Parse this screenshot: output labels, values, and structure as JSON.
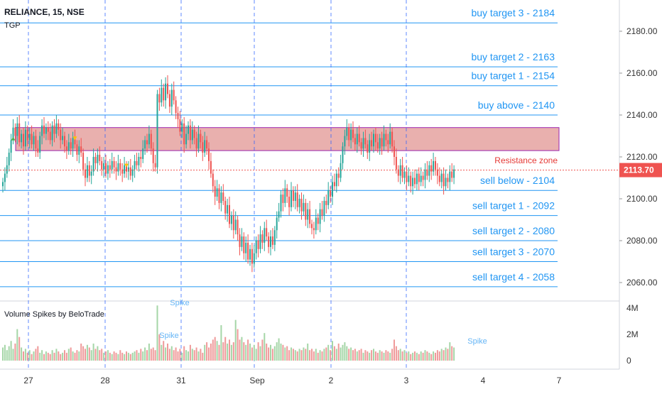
{
  "header": {
    "symbol": "RELIANCE, 15, NSE",
    "indicator": "TGP",
    "volume_pane_title": "Volume Spikes by BeloTrade"
  },
  "colors": {
    "up": "#26a69a",
    "down": "#ef5350",
    "level_line": "#2196f3",
    "level_text": "#2196f3",
    "zone_fill": "#e5a2a0",
    "zone_border": "#9c27b0",
    "zone_label": "#e53935",
    "price_line": "#ef5350",
    "price_badge": "#ef5350",
    "session_line": "#2962ff",
    "vol_up": "#a5d6a7",
    "vol_down": "#ef9a9a",
    "spike_text": "#64b5f6",
    "marker_up": "#4caf50",
    "marker_down": "#ffc107",
    "axis_text": "#333333"
  },
  "chart_data": {
    "type": "candlestick",
    "y_range": [
      2054,
      2190
    ],
    "y_ticks": [
      "2060.00",
      "2080.00",
      "2100.00",
      "2120.00",
      "2140.00",
      "2160.00",
      "2180.00"
    ],
    "x_ticks": [
      "27",
      "28",
      "31",
      "Sep",
      "2",
      "3",
      "4",
      "7"
    ],
    "session_breaks": [
      "27",
      "28",
      "31",
      "Sep",
      "2",
      "3"
    ],
    "last_price": "2113.70",
    "levels": [
      {
        "label": "buy target 3 - 2184",
        "value": 2184
      },
      {
        "label": "buy target 2 - 2163",
        "value": 2163
      },
      {
        "label": "buy target 1 - 2154",
        "value": 2154
      },
      {
        "label": "buy above - 2140",
        "value": 2140
      },
      {
        "label": "sell below - 2104",
        "value": 2104
      },
      {
        "label": "sell target 1 - 2092",
        "value": 2092
      },
      {
        "label": "sell target 2 - 2080",
        "value": 2080
      },
      {
        "label": "sell target 3 - 2070",
        "value": 2070
      },
      {
        "label": "sell target 4 - 2058",
        "value": 2058
      }
    ],
    "zone": {
      "label": "Resistance zone",
      "low": 2123,
      "high": 2134
    },
    "volume_ticks": [
      "4M",
      "2M",
      "0"
    ],
    "volume_range": [
      0,
      4
    ],
    "spike_labels": [
      "Spike",
      "Spike",
      "Spike"
    ],
    "close_series": [
      2108,
      2112,
      2116,
      2122,
      2128,
      2134,
      2130,
      2136,
      2127,
      2131,
      2125,
      2133,
      2128,
      2131,
      2126,
      2130,
      2124,
      2122,
      2130,
      2135,
      2131,
      2134,
      2132,
      2128,
      2135,
      2131,
      2136,
      2133,
      2128,
      2130,
      2125,
      2123,
      2127,
      2124,
      2129,
      2126,
      2121,
      2125,
      2122,
      2114,
      2110,
      2116,
      2111,
      2113,
      2120,
      2117,
      2121,
      2118,
      2114,
      2117,
      2112,
      2116,
      2114,
      2118,
      2115,
      2113,
      2117,
      2114,
      2112,
      2116,
      2113,
      2115,
      2111,
      2114,
      2118,
      2116,
      2120,
      2119,
      2124,
      2128,
      2126,
      2131,
      2124,
      2117,
      2115,
      2150,
      2146,
      2153,
      2147,
      2155,
      2150,
      2144,
      2152,
      2147,
      2141,
      2138,
      2132,
      2136,
      2126,
      2131,
      2135,
      2128,
      2133,
      2129,
      2124,
      2131,
      2127,
      2122,
      2128,
      2124,
      2118,
      2112,
      2106,
      2101,
      2105,
      2098,
      2103,
      2099,
      2093,
      2097,
      2088,
      2092,
      2085,
      2090,
      2083,
      2077,
      2082,
      2074,
      2079,
      2071,
      2076,
      2069,
      2074,
      2080,
      2076,
      2083,
      2079,
      2086,
      2082,
      2077,
      2082,
      2078,
      2085,
      2091,
      2094,
      2102,
      2098,
      2105,
      2101,
      2096,
      2104,
      2099,
      2103,
      2096,
      2100,
      2094,
      2098,
      2090,
      2095,
      2088,
      2086,
      2085,
      2091,
      2088,
      2095,
      2092,
      2099,
      2097,
      2104,
      2101,
      2108,
      2106,
      2112,
      2110,
      2117,
      2125,
      2130,
      2134,
      2128,
      2133,
      2129,
      2126,
      2131,
      2127,
      2124,
      2129,
      2126,
      2122,
      2128,
      2125,
      2131,
      2127,
      2124,
      2129,
      2125,
      2131,
      2128,
      2126,
      2132,
      2125,
      2120,
      2114,
      2111,
      2116,
      2110,
      2113,
      2108,
      2111,
      2106,
      2110,
      2107,
      2112,
      2108,
      2111,
      2109,
      2114,
      2111,
      2116,
      2113,
      2118,
      2114,
      2111,
      2108,
      2112,
      2106,
      2110,
      2108,
      2113,
      2110,
      2114
    ],
    "volume_series": [
      1.0,
      1.2,
      0.8,
      1.1,
      1.5,
      0.9,
      1.3,
      2.4,
      1.8,
      1.0,
      0.7,
      0.9,
      0.6,
      0.8,
      0.5,
      0.7,
      0.9,
      1.1,
      0.6,
      0.8,
      0.5,
      0.7,
      0.6,
      0.5,
      0.8,
      0.6,
      0.9,
      0.7,
      0.5,
      0.6,
      0.8,
      0.6,
      0.9,
      1.0,
      0.7,
      0.6,
      0.8,
      0.7,
      1.3,
      1.1,
      0.9,
      1.2,
      1.0,
      0.8,
      1.3,
      0.9,
      1.1,
      0.8,
      0.9,
      0.6,
      0.7,
      0.8,
      0.6,
      0.5,
      0.7,
      0.6,
      0.5,
      0.8,
      0.6,
      0.5,
      0.7,
      0.6,
      0.5,
      0.6,
      0.7,
      0.8,
      0.6,
      0.9,
      0.7,
      1.0,
      0.8,
      1.3,
      0.9,
      1.0,
      0.8,
      4.2,
      2.0,
      1.2,
      1.5,
      1.0,
      1.3,
      0.9,
      1.1,
      0.8,
      1.0,
      0.7,
      0.9,
      0.6,
      1.1,
      0.8,
      0.7,
      1.2,
      0.9,
      0.8,
      1.0,
      0.7,
      0.9,
      0.6,
      1.2,
      1.4,
      1.0,
      1.3,
      1.6,
      1.8,
      1.5,
      1.2,
      2.7,
      1.4,
      1.8,
      1.3,
      1.6,
      1.2,
      1.4,
      3.1,
      2.4,
      1.6,
      1.8,
      1.4,
      1.2,
      1.6,
      1.3,
      1.0,
      1.2,
      0.9,
      1.4,
      1.1,
      1.6,
      2.1,
      1.3,
      1.0,
      1.2,
      0.9,
      1.1,
      1.4,
      1.7,
      1.3,
      1.2,
      1.0,
      1.1,
      0.8,
      1.0,
      0.9,
      0.8,
      0.7,
      0.9,
      0.8,
      1.0,
      0.9,
      1.3,
      0.8,
      0.9,
      0.7,
      0.9,
      0.6,
      0.8,
      0.7,
      0.9,
      1.0,
      1.2,
      0.8,
      1.5,
      1.1,
      0.9,
      1.3,
      1.0,
      1.2,
      1.4,
      1.1,
      0.9,
      1.0,
      0.8,
      0.9,
      0.7,
      0.8,
      0.9,
      0.6,
      0.8,
      0.7,
      0.6,
      0.8,
      0.9,
      0.7,
      0.6,
      0.8,
      0.7,
      0.6,
      0.8,
      0.7,
      0.6,
      0.9,
      1.6,
      1.1,
      0.8,
      0.9,
      0.7,
      0.8,
      0.6,
      0.7,
      0.5,
      0.6,
      0.7,
      0.6,
      0.5,
      0.7,
      0.6,
      0.8,
      0.7,
      0.6,
      0.5,
      0.7,
      0.6,
      0.8,
      0.7,
      0.9,
      0.8,
      1.0,
      0.9,
      1.4,
      1.1,
      1.0
    ],
    "buy_signal_indices": [
      5
    ],
    "sell_signal_indices": [
      35,
      60
    ]
  }
}
